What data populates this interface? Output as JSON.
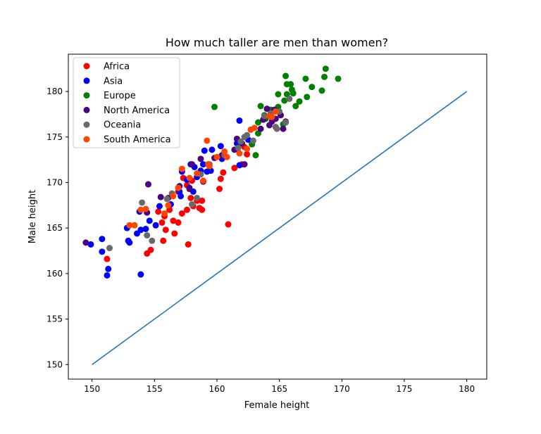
{
  "chart_data": {
    "type": "scatter",
    "title": "How much taller are men than women?",
    "xlabel": "Female height",
    "ylabel": "Male height",
    "xlim": [
      148.1,
      181.6
    ],
    "ylim": [
      148.4,
      184.1
    ],
    "xticks": [
      150,
      155,
      160,
      165,
      170,
      175,
      180
    ],
    "yticks": [
      150,
      155,
      160,
      165,
      170,
      175,
      180
    ],
    "grid": false,
    "legend_position": "top-left",
    "reference_line": {
      "x": [
        150,
        180
      ],
      "y": [
        150,
        180
      ],
      "color": "#1f77b4"
    },
    "series": [
      {
        "name": "Africa",
        "color": "#ff0000",
        "points": [
          [
            151.2,
            161.6
          ],
          [
            154.4,
            162.2
          ],
          [
            154.7,
            162.6
          ],
          [
            155.7,
            163.6
          ],
          [
            157.7,
            163.2
          ],
          [
            156.6,
            164.4
          ],
          [
            155.9,
            164.8
          ],
          [
            155.6,
            165.6
          ],
          [
            156.5,
            165.8
          ],
          [
            156.9,
            165.6
          ],
          [
            155.3,
            166.8
          ],
          [
            155.8,
            166.3
          ],
          [
            156.2,
            167.0
          ],
          [
            157.2,
            166.6
          ],
          [
            157.6,
            167.0
          ],
          [
            158.1,
            167.4
          ],
          [
            158.6,
            167.2
          ],
          [
            158.8,
            167.0
          ],
          [
            158.8,
            168.0
          ],
          [
            158.4,
            168.0
          ],
          [
            157.9,
            168.3
          ],
          [
            156.9,
            169.0
          ],
          [
            157.6,
            169.7
          ],
          [
            157.3,
            170.5
          ],
          [
            158.0,
            170.2
          ],
          [
            158.5,
            170.8
          ],
          [
            160.2,
            169.3
          ],
          [
            160.3,
            170.4
          ],
          [
            160.5,
            171.1
          ],
          [
            161.4,
            171.6
          ],
          [
            162.0,
            172.0
          ],
          [
            162.4,
            173.1
          ],
          [
            162.2,
            173.9
          ],
          [
            160.9,
            165.4
          ]
        ]
      },
      {
        "name": "Asia",
        "color": "#0000ff",
        "points": [
          [
            149.9,
            163.2
          ],
          [
            150.8,
            163.8
          ],
          [
            150.8,
            162.4
          ],
          [
            151.2,
            159.8
          ],
          [
            151.3,
            160.5
          ],
          [
            152.9,
            163.6
          ],
          [
            153.0,
            163.4
          ],
          [
            152.8,
            165.0
          ],
          [
            153.6,
            164.4
          ],
          [
            153.9,
            164.8
          ],
          [
            154.3,
            164.9
          ],
          [
            153.8,
            166.8
          ],
          [
            154.6,
            165.8
          ],
          [
            155.1,
            165.3
          ],
          [
            153.9,
            159.9
          ],
          [
            155.4,
            167.4
          ],
          [
            156.3,
            167.6
          ],
          [
            157.1,
            168.5
          ],
          [
            157.0,
            169.0
          ],
          [
            157.8,
            169.4
          ],
          [
            158.1,
            169.0
          ],
          [
            157.6,
            170.3
          ],
          [
            158.4,
            170.6
          ],
          [
            158.2,
            171.7
          ],
          [
            157.2,
            171.2
          ],
          [
            157.9,
            172.0
          ],
          [
            158.7,
            171.3
          ],
          [
            158.9,
            172.0
          ],
          [
            159.0,
            173.5
          ],
          [
            159.2,
            171.2
          ],
          [
            159.5,
            171.3
          ],
          [
            159.6,
            173.6
          ],
          [
            160.3,
            174.0
          ],
          [
            160.4,
            172.6
          ],
          [
            161.6,
            174.3
          ],
          [
            162.5,
            174.7
          ],
          [
            162.8,
            174.2
          ],
          [
            161.8,
            176.8
          ],
          [
            161.8,
            171.9
          ]
        ]
      },
      {
        "name": "Europe",
        "color": "#008000",
        "points": [
          [
            159.8,
            178.3
          ],
          [
            162.8,
            174.2
          ],
          [
            163.1,
            173.0
          ],
          [
            163.3,
            175.4
          ],
          [
            163.3,
            176.6
          ],
          [
            163.5,
            178.4
          ],
          [
            163.9,
            177.0
          ],
          [
            163.8,
            177.4
          ],
          [
            164.3,
            178.0
          ],
          [
            164.6,
            177.9
          ],
          [
            164.9,
            179.7
          ],
          [
            164.9,
            178.3
          ],
          [
            165.1,
            177.4
          ],
          [
            165.3,
            176.4
          ],
          [
            165.4,
            179.0
          ],
          [
            165.5,
            181.7
          ],
          [
            165.6,
            180.8
          ],
          [
            165.6,
            179.7
          ],
          [
            165.9,
            180.8
          ],
          [
            166.0,
            180.2
          ],
          [
            166.1,
            179.8
          ],
          [
            166.3,
            178.4
          ],
          [
            166.6,
            178.9
          ],
          [
            167.1,
            181.4
          ],
          [
            167.2,
            179.4
          ],
          [
            167.6,
            180.5
          ],
          [
            168.4,
            180.1
          ],
          [
            168.6,
            181.6
          ],
          [
            168.7,
            182.5
          ],
          [
            169.7,
            181.4
          ]
        ]
      },
      {
        "name": "North America",
        "color": "#4b0082",
        "points": [
          [
            149.5,
            163.4
          ],
          [
            154.4,
            166.7
          ],
          [
            154.5,
            169.8
          ],
          [
            155.5,
            168.4
          ],
          [
            156.1,
            168.3
          ],
          [
            157.0,
            169.6
          ],
          [
            157.8,
            169.3
          ],
          [
            158.0,
            172.0
          ],
          [
            158.7,
            172.6
          ],
          [
            158.9,
            170.1
          ],
          [
            159.8,
            172.7
          ],
          [
            160.4,
            173.0
          ],
          [
            161.4,
            173.6
          ],
          [
            161.6,
            174.8
          ],
          [
            162.0,
            174.3
          ],
          [
            162.2,
            172.0
          ],
          [
            163.5,
            175.9
          ],
          [
            163.7,
            176.9
          ],
          [
            164.0,
            178.1
          ],
          [
            164.2,
            176.3
          ],
          [
            164.4,
            176.7
          ],
          [
            164.7,
            177.0
          ],
          [
            165.1,
            177.4
          ],
          [
            165.3,
            175.9
          ],
          [
            165.5,
            176.7
          ],
          [
            164.6,
            178.0
          ]
        ]
      },
      {
        "name": "Oceania",
        "color": "#696969",
        "points": [
          [
            151.4,
            162.8
          ],
          [
            154.0,
            167.8
          ],
          [
            154.4,
            164.2
          ],
          [
            154.8,
            163.6
          ],
          [
            156.0,
            168.2
          ],
          [
            156.4,
            168.8
          ],
          [
            158.0,
            167.6
          ],
          [
            158.4,
            168.3
          ],
          [
            158.7,
            170.9
          ],
          [
            159.4,
            172.0
          ],
          [
            160.6,
            173.0
          ],
          [
            161.7,
            173.8
          ],
          [
            161.9,
            174.5
          ],
          [
            162.2,
            175.0
          ],
          [
            162.4,
            175.2
          ],
          [
            162.9,
            174.6
          ],
          [
            163.8,
            177.3
          ],
          [
            164.3,
            177.6
          ],
          [
            164.7,
            176.1
          ],
          [
            164.8,
            175.9
          ],
          [
            165.0,
            177.8
          ],
          [
            165.5,
            176.6
          ],
          [
            165.8,
            179.2
          ]
        ]
      },
      {
        "name": "South America",
        "color": "#ff4500",
        "points": [
          [
            153.0,
            165.3
          ],
          [
            153.4,
            165.3
          ],
          [
            153.9,
            167.0
          ],
          [
            154.3,
            167.1
          ],
          [
            155.8,
            166.6
          ],
          [
            156.1,
            167.5
          ],
          [
            156.5,
            168.5
          ],
          [
            156.9,
            169.4
          ],
          [
            157.2,
            171.5
          ],
          [
            157.8,
            170.5
          ],
          [
            158.4,
            171.0
          ],
          [
            158.9,
            170.2
          ],
          [
            159.2,
            174.6
          ],
          [
            159.3,
            172.0
          ],
          [
            159.4,
            171.8
          ],
          [
            160.0,
            172.8
          ],
          [
            160.6,
            173.4
          ],
          [
            160.8,
            172.8
          ],
          [
            161.8,
            173.2
          ],
          [
            162.4,
            173.7
          ],
          [
            162.7,
            175.8
          ],
          [
            163.0,
            176.0
          ],
          [
            164.2,
            177.3
          ],
          [
            164.4,
            177.2
          ],
          [
            164.7,
            177.8
          ]
        ]
      }
    ]
  }
}
